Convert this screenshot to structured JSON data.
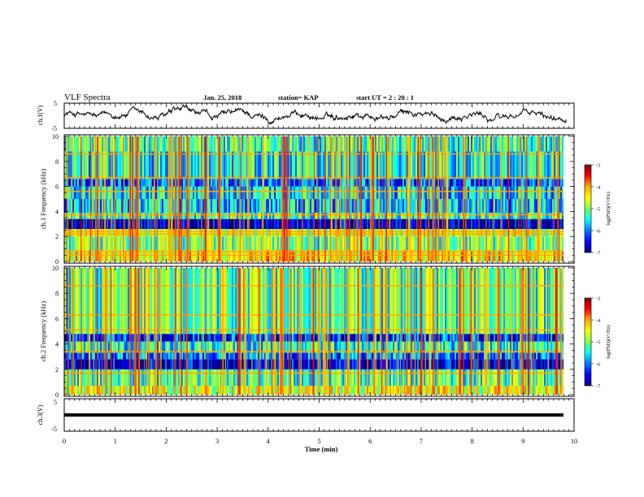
{
  "header": {
    "title": "VLF Spectra",
    "date": "Jan. 25, 2018",
    "station": "station= KAP",
    "start": "start  UT =   2 : 20 : 1"
  },
  "colorbar": {
    "label": "log(PSD)(V²/Hz)",
    "ticks": [
      "-3",
      "-4",
      "-5",
      "-6",
      "-7"
    ],
    "stops": [
      "#7f0000",
      "#ff0000",
      "#ffaa00",
      "#ffff00",
      "#77ff55",
      "#00ffff",
      "#0077ff",
      "#0000ff",
      "#00007f"
    ]
  },
  "chart_data": [
    {
      "type": "line",
      "panel": "ch.1 waveform",
      "ylabel": "ch.1(V)",
      "ylim": [
        -5,
        5
      ],
      "yticks": [
        "5",
        "-5"
      ],
      "xlim": [
        0,
        10
      ],
      "note": "continuous noisy waveform, amplitude roughly ±3 V around 0"
    },
    {
      "type": "heatmap",
      "panel": "ch.1 spectrogram",
      "ylabel": "ch.1 Frequency (kHz)",
      "ylim": [
        0,
        10
      ],
      "yticks": [
        "0",
        "2",
        "4",
        "6",
        "8",
        "10"
      ],
      "xlim": [
        0,
        9.85
      ],
      "zlim": [
        -7,
        -3
      ],
      "bands_khz": [
        {
          "from": 0,
          "to": 0.9,
          "level": -4.4
        },
        {
          "from": 0.9,
          "to": 2.0,
          "level": -5.0
        },
        {
          "from": 2.0,
          "to": 2.6,
          "level": -4.6
        },
        {
          "from": 2.6,
          "to": 3.4,
          "level": -6.8
        },
        {
          "from": 3.4,
          "to": 3.9,
          "level": -5.3
        },
        {
          "from": 3.9,
          "to": 5.0,
          "level": -5.7
        },
        {
          "from": 5.0,
          "to": 6.0,
          "level": -5.6
        },
        {
          "from": 6.0,
          "to": 6.6,
          "level": -6.1
        },
        {
          "from": 6.6,
          "to": 8.8,
          "level": -5.5
        },
        {
          "from": 8.8,
          "to": 10,
          "level": -5.3
        }
      ],
      "lines_khz": [
        0.5,
        0.8,
        2.2,
        2.4,
        3.75,
        5.6,
        6.7,
        8.6
      ]
    },
    {
      "type": "heatmap",
      "panel": "ch.2 spectrogram",
      "ylabel": "ch.2 Frequency (kHz)",
      "ylim": [
        0,
        10
      ],
      "yticks": [
        "0",
        "2",
        "4",
        "6",
        "8",
        "10"
      ],
      "xlim": [
        0,
        9.85
      ],
      "zlim": [
        -7,
        -3
      ],
      "bands_khz": [
        {
          "from": 0,
          "to": 0.7,
          "level": -4.6
        },
        {
          "from": 0.7,
          "to": 2.0,
          "level": -5.2
        },
        {
          "from": 2.0,
          "to": 2.8,
          "level": -6.7
        },
        {
          "from": 2.8,
          "to": 3.3,
          "level": -6.0
        },
        {
          "from": 3.3,
          "to": 4.2,
          "level": -5.4
        },
        {
          "from": 4.2,
          "to": 4.8,
          "level": -6.3
        },
        {
          "from": 4.8,
          "to": 10,
          "level": -5.2
        }
      ],
      "lines_khz": [
        1.7,
        3.4,
        5.1,
        6.3,
        8.6
      ]
    },
    {
      "type": "line",
      "panel": "ch.3 waveform",
      "ylabel": "ch.3(V)",
      "ylim": [
        -5,
        5
      ],
      "yticks": [
        "5",
        "-5"
      ],
      "xlim": [
        0,
        10
      ],
      "y_constant": 0,
      "xlabel": "Time  (min)",
      "xticks": [
        "0",
        "1",
        "2",
        "3",
        "4",
        "5",
        "6",
        "7",
        "8",
        "9",
        "10"
      ]
    }
  ]
}
